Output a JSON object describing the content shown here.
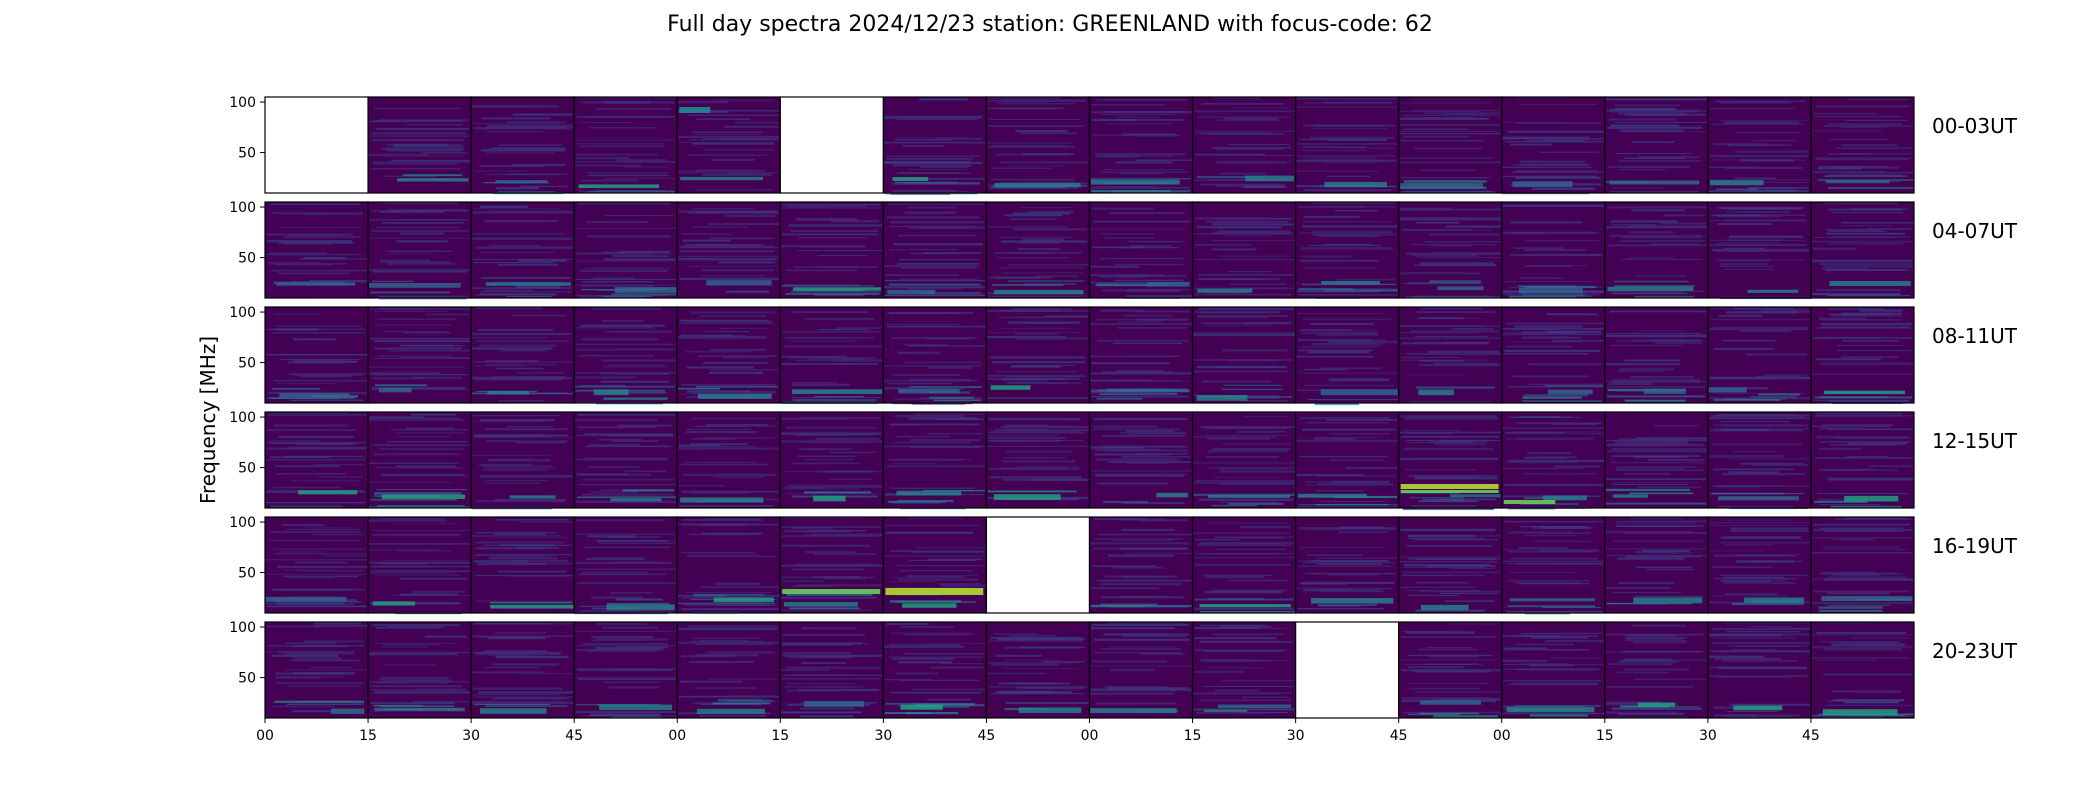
{
  "chart_data": {
    "type": "heatmap",
    "title": "Full day spectra 2024/12/23 station: GREENLAND with focus-code: 62",
    "ylabel": "Frequency [MHz]",
    "y_ticks": [
      "100",
      "50"
    ],
    "x_ticks": [
      "00",
      "15",
      "30",
      "45",
      "00",
      "15",
      "30",
      "45",
      "00",
      "15",
      "30",
      "45",
      "00",
      "15",
      "30",
      "45"
    ],
    "colormap": "viridis",
    "rows": [
      {
        "label": "00-03UT",
        "missing_panels": [
          0,
          5
        ]
      },
      {
        "label": "04-07UT",
        "missing_panels": []
      },
      {
        "label": "08-11UT",
        "missing_panels": []
      },
      {
        "label": "12-15UT",
        "missing_panels": []
      },
      {
        "label": "16-19UT",
        "missing_panels": [
          7
        ]
      },
      {
        "label": "20-23UT",
        "missing_panels": [
          10
        ]
      }
    ],
    "panels_per_row": 16,
    "colors": {
      "background": "#440154",
      "low": "#3b2a73",
      "mid": "#25858e",
      "high": "#9fda3a"
    }
  }
}
